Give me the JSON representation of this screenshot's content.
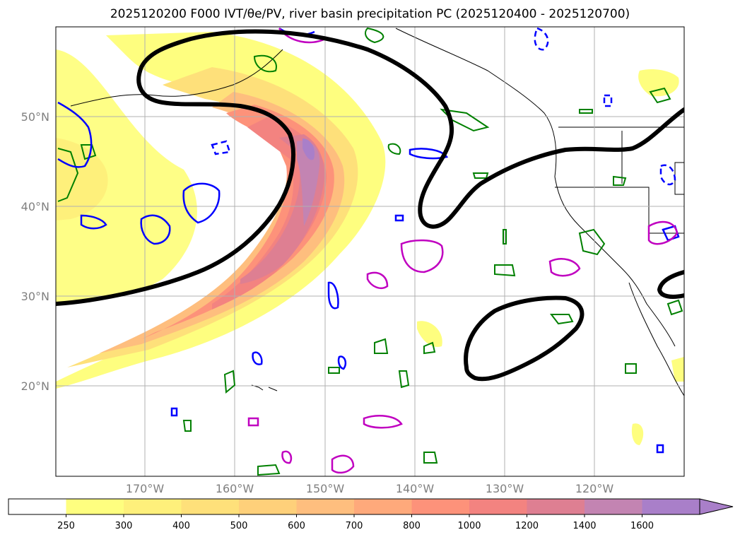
{
  "title": "2025120200 F000 IVT/θe/PV, river basin precipitation PC (2025120400 - 2025120700)",
  "map": {
    "lat_labels": [
      "50°N",
      "40°N",
      "30°N",
      "20°N"
    ],
    "lon_labels": [
      "170°W",
      "160°W",
      "150°W",
      "140°W",
      "130°W",
      "120°W"
    ]
  },
  "colorbar": {
    "ticks": [
      "250",
      "300",
      "400",
      "500",
      "600",
      "700",
      "800",
      "1000",
      "1200",
      "1400",
      "1600"
    ],
    "colors": [
      "#ffffff",
      "#fefe7f",
      "#fef07b",
      "#fee07a",
      "#fed07a",
      "#febe7e",
      "#fea97b",
      "#fd927a",
      "#f38380",
      "#de7f92",
      "#c384b2",
      "#a97fc9"
    ],
    "extend": "max"
  },
  "legend_colors": {
    "ivt_contour": "#000000",
    "theta_e": "#008000",
    "pv_blue": "#0000ff",
    "pv_magenta": "#c000c0"
  }
}
